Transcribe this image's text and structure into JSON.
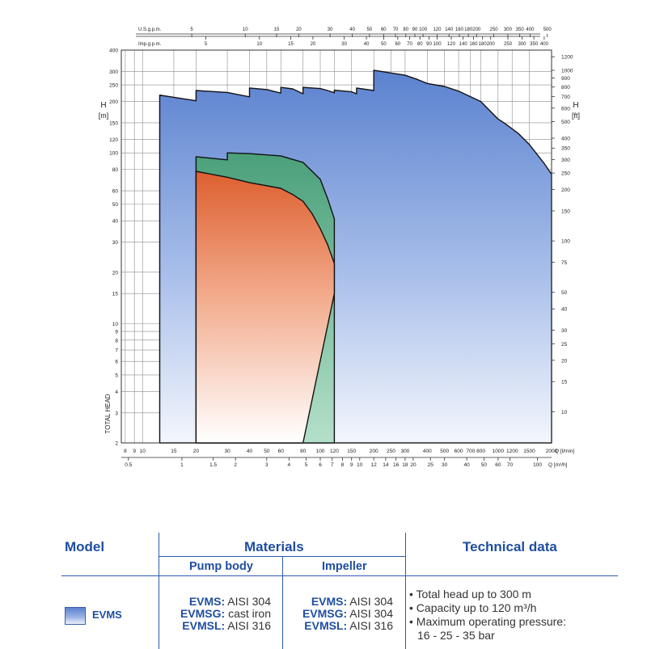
{
  "chart_data": {
    "type": "area",
    "title": "",
    "x_axes": {
      "us_gpm": {
        "label": "U.S.g.p.m.",
        "ticks": [
          5,
          10,
          15,
          20,
          30,
          40,
          50,
          60,
          70,
          80,
          90,
          100,
          120,
          140,
          160,
          180,
          200,
          250,
          300,
          350,
          400,
          500
        ]
      },
      "imp_gpm": {
        "label": "Imp.g.p.m.",
        "ticks": [
          5,
          10,
          15,
          20,
          30,
          40,
          50,
          60,
          70,
          80,
          90,
          100,
          120,
          140,
          160,
          180,
          200,
          250,
          300,
          350,
          400
        ]
      },
      "q_lmin": {
        "label": "Q [l/min]",
        "ticks": [
          8,
          9,
          10,
          15,
          20,
          30,
          40,
          50,
          60,
          80,
          100,
          120,
          150,
          200,
          250,
          300,
          400,
          500,
          600,
          700,
          800,
          1000,
          1200,
          1500,
          2000
        ],
        "range": [
          7.6,
          2000
        ]
      },
      "q_m3h": {
        "label": "Q [m³/h]",
        "ticks": [
          0.5,
          1,
          1.5,
          2,
          3,
          4,
          5,
          6,
          7,
          8,
          9,
          10,
          12,
          14,
          16,
          18,
          20,
          25,
          30,
          40,
          50,
          60,
          70,
          100
        ]
      }
    },
    "y_axes": {
      "left": {
        "label_top": "H",
        "label_unit": "[m]",
        "label_side": "TOTAL HEAD",
        "ticks": [
          2,
          3,
          4,
          5,
          6,
          7,
          8,
          9,
          10,
          15,
          20,
          30,
          40,
          50,
          60,
          80,
          100,
          120,
          150,
          200,
          250,
          300,
          400
        ],
        "range": [
          2,
          400
        ]
      },
      "right": {
        "label_top": "H",
        "label_unit": "[ft]",
        "ticks": [
          10,
          15,
          20,
          25,
          30,
          40,
          50,
          75,
          100,
          150,
          200,
          250,
          300,
          350,
          400,
          500,
          600,
          700,
          800,
          900,
          1000,
          1200
        ]
      }
    },
    "series": [
      {
        "name": "EVMS",
        "color": "#5b82cf",
        "polygon_q_lmin_h_m": [
          [
            12.5,
            2
          ],
          [
            12.5,
            218
          ],
          [
            20,
            202
          ],
          [
            20,
            232
          ],
          [
            30,
            226
          ],
          [
            40,
            213
          ],
          [
            40,
            240
          ],
          [
            50,
            235
          ],
          [
            60,
            224
          ],
          [
            60,
            242
          ],
          [
            70,
            237
          ],
          [
            80,
            222
          ],
          [
            80,
            242
          ],
          [
            100,
            238
          ],
          [
            110,
            232
          ],
          [
            120,
            225
          ],
          [
            120,
            233
          ],
          [
            150,
            228
          ],
          [
            160,
            222
          ],
          [
            160,
            240
          ],
          [
            200,
            232
          ],
          [
            200,
            305
          ],
          [
            300,
            285
          ],
          [
            350,
            270
          ],
          [
            400,
            255
          ],
          [
            500,
            245
          ],
          [
            600,
            230
          ],
          [
            800,
            200
          ],
          [
            1000,
            158
          ],
          [
            1100,
            148
          ],
          [
            1300,
            130
          ],
          [
            1500,
            112
          ],
          [
            1800,
            88
          ],
          [
            2000,
            75
          ],
          [
            2000,
            2
          ]
        ]
      },
      {
        "name": "EVMSG",
        "color": "#5cad86",
        "polygon_q_lmin_h_m": [
          [
            20,
            2
          ],
          [
            20,
            95
          ],
          [
            30,
            91
          ],
          [
            30,
            100
          ],
          [
            40,
            99
          ],
          [
            60,
            96
          ],
          [
            80,
            88
          ],
          [
            100,
            70
          ],
          [
            110,
            54
          ],
          [
            120,
            41
          ],
          [
            120,
            2
          ]
        ]
      },
      {
        "name": "EVMSL",
        "color": "#e06a3c",
        "polygon_q_lmin_h_m": [
          [
            20,
            2
          ],
          [
            20,
            78
          ],
          [
            30,
            72
          ],
          [
            40,
            67
          ],
          [
            60,
            62
          ],
          [
            70,
            57
          ],
          [
            80,
            52
          ],
          [
            90,
            44
          ],
          [
            100,
            36
          ],
          [
            110,
            29
          ],
          [
            120,
            22.5
          ],
          [
            120,
            15
          ],
          [
            80,
            2
          ]
        ]
      }
    ]
  },
  "table": {
    "headers": {
      "model": "Model",
      "materials": "Materials",
      "technical": "Technical data",
      "pump_body": "Pump body",
      "impeller": "Impeller"
    },
    "row": {
      "model_name": "EVMS",
      "body": [
        {
          "model": "EVMS:",
          "material": " AISI 304"
        },
        {
          "model": "EVMSG:",
          "material": " cast iron"
        },
        {
          "model": "EVMSL:",
          "material": " AISI 316"
        }
      ],
      "impeller": [
        {
          "model": "EVMS:",
          "material": " AISI 304"
        },
        {
          "model": "EVMSG:",
          "material": " AISI 304"
        },
        {
          "model": "EVMSL:",
          "material": " AISI 316"
        }
      ],
      "tech": [
        "• Total head up to 300 m",
        "• Capacity up to 120 m³/h",
        "• Maximum operating pressure:",
        "16 - 25 - 35 bar"
      ]
    }
  },
  "colors": {
    "accent": "#1f4ea0",
    "line": "#2d5bb0"
  }
}
